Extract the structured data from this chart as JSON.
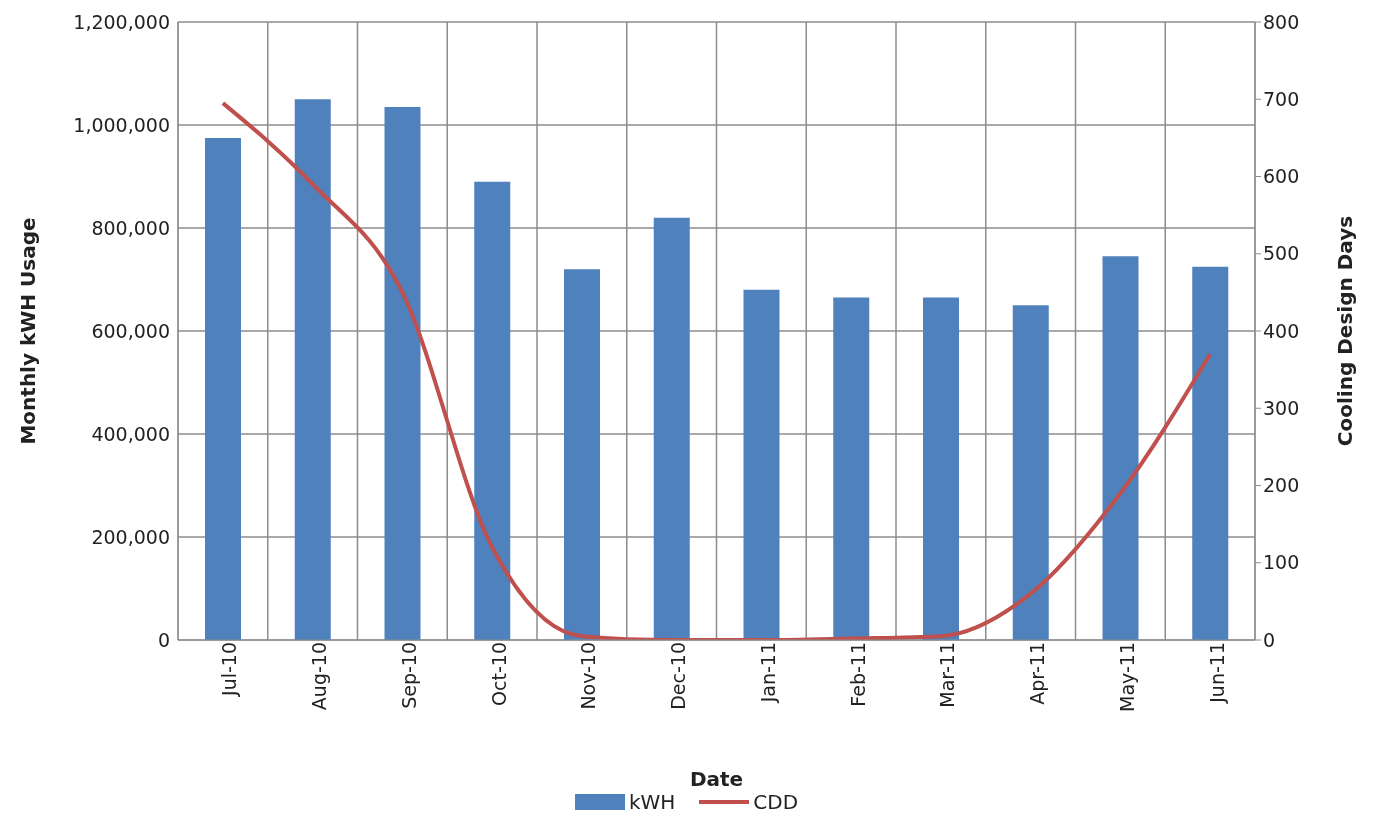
{
  "chart_data": {
    "type": "bar",
    "xlabel": "Date",
    "ylabel": "Monthly kWH Usage",
    "y2label": "Cooling Design Days",
    "categories": [
      "Jul-10",
      "Aug-10",
      "Sep-10",
      "Oct-10",
      "Nov-10",
      "Dec-10",
      "Jan-11",
      "Feb-11",
      "Mar-11",
      "Apr-11",
      "May-11",
      "Jun-11"
    ],
    "series": [
      {
        "name": "kWH",
        "color": "#4f81bd",
        "values": [
          975000,
          1050000,
          1035000,
          890000,
          720000,
          820000,
          680000,
          665000,
          665000,
          650000,
          745000,
          725000
        ]
      },
      {
        "name": "CDD",
        "type": "line",
        "axis": "y2",
        "color": "#c0504d",
        "values": [
          695,
          590,
          450,
          120,
          5,
          0,
          0,
          2,
          5,
          60,
          190,
          370
        ]
      }
    ],
    "ylim": [
      0,
      1200000
    ],
    "yticks": [
      0,
      {
        "value": 200000,
        "label": "200,000"
      },
      {
        "value": 400000,
        "label": "400,000"
      },
      {
        "value": 600000,
        "label": "600,000"
      },
      {
        "value": 800000,
        "label": "800,000"
      },
      {
        "value": 1000000,
        "label": "1,000,000"
      },
      {
        "value": 1200000,
        "label": "1,200,000"
      }
    ],
    "y2lim": [
      0,
      800
    ],
    "y2ticks": [
      0,
      100,
      200,
      300,
      400,
      500,
      600,
      700,
      800
    ],
    "grid": true,
    "legend": "bottom",
    "marker": "none"
  }
}
